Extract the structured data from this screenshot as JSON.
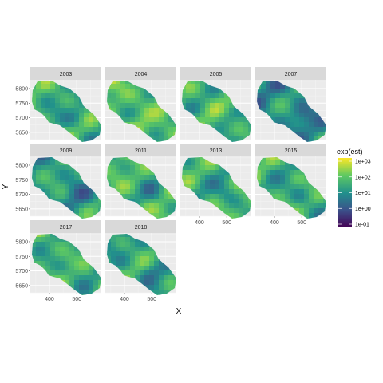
{
  "chart_data": {
    "type": "heatmap",
    "panels": [
      "2003",
      "2004",
      "2005",
      "2007",
      "2009",
      "2011",
      "2013",
      "2015",
      "2017",
      "2018"
    ],
    "xlabel": "X",
    "ylabel": "Y",
    "x_ticks": [
      "400",
      "500"
    ],
    "y_ticks": [
      "5800",
      "5750",
      "5700",
      "5650"
    ],
    "x_range": [
      330,
      590
    ],
    "y_range": [
      5625,
      5830
    ],
    "grid": true,
    "legend": {
      "title": "exp(est)",
      "position": "right",
      "scale": "log",
      "labels": [
        "1e+03",
        "1e+02",
        "1e+01",
        "1e+00",
        "1e-01"
      ],
      "colors": [
        "#fde725",
        "#5ec962",
        "#21918c",
        "#3b528b",
        "#440154"
      ]
    },
    "panel_mean_log10": [
      1.5,
      1.9,
      1.7,
      1.0,
      1.2,
      1.6,
      1.5,
      1.5,
      1.6,
      1.4
    ]
  }
}
